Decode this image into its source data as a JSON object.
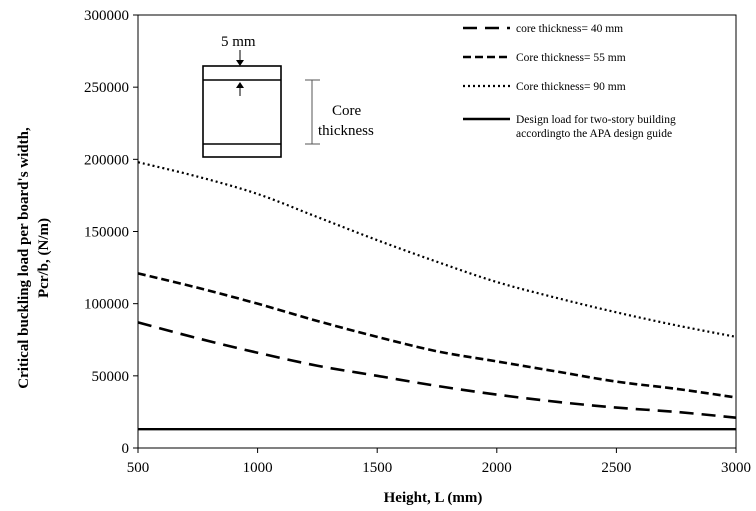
{
  "chart_data": {
    "type": "line",
    "xlabel": "Height, L (mm)",
    "ylabel": [
      "Critical buckling load per board's width,",
      "Pcr/b, (N/m)"
    ],
    "xlim": [
      500,
      3000
    ],
    "ylim": [
      0,
      300000
    ],
    "xticks": [
      500,
      1000,
      1500,
      2000,
      2500,
      3000
    ],
    "yticks": [
      0,
      50000,
      100000,
      150000,
      200000,
      250000,
      300000
    ],
    "grid": false,
    "legend_position": "top-right",
    "series": [
      {
        "name": "core thickness= 40 mm",
        "style": "long-dash",
        "x": [
          500,
          750,
          1000,
          1250,
          1500,
          1750,
          2000,
          2250,
          2500,
          2750,
          3000
        ],
        "y": [
          87000,
          76000,
          66000,
          57000,
          50000,
          43000,
          37000,
          32000,
          28000,
          25000,
          21000
        ]
      },
      {
        "name": "Core thickness= 55 mm",
        "style": "dash",
        "x": [
          500,
          750,
          1000,
          1250,
          1500,
          1750,
          2000,
          2250,
          2500,
          2750,
          3000
        ],
        "y": [
          121000,
          111000,
          100000,
          88000,
          77000,
          67000,
          60000,
          53000,
          46000,
          41000,
          35000
        ]
      },
      {
        "name": "Core thickness= 90 mm",
        "style": "dotted",
        "x": [
          500,
          750,
          1000,
          1250,
          1500,
          1750,
          2000,
          2250,
          2500,
          2750,
          3000
        ],
        "y": [
          198000,
          188000,
          176000,
          160000,
          144000,
          129000,
          115000,
          104000,
          94000,
          85000,
          77000
        ]
      },
      {
        "name": [
          "Design load for two-story building",
          "accordingto the APA design guide"
        ],
        "style": "solid",
        "x": [
          500,
          3000
        ],
        "y": [
          13000,
          13000
        ]
      }
    ],
    "inset": {
      "label_top": "5 mm",
      "label_side": [
        "Core",
        "thickness"
      ]
    }
  }
}
